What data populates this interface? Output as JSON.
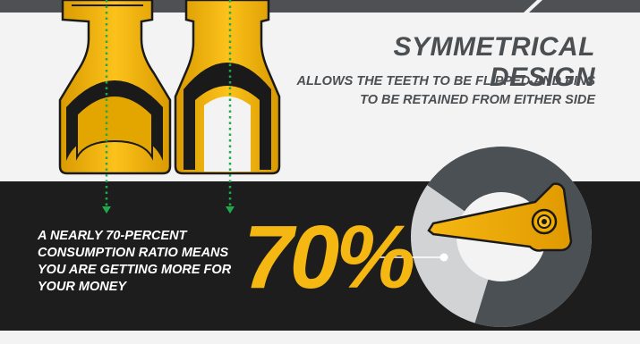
{
  "design": {
    "title": "SYMMETRICAL DESIGN",
    "description": "ALLOWS THE TEETH TO BE FLIPPED AND PINS TO BE RETAINED FROM EITHER SIDE"
  },
  "consumption": {
    "text": "A NEARLY 70-PERCENT CONSUMPTION RATIO MEANS YOU ARE GETTING MORE FOR YOUR MONEY",
    "percent_label": "70%",
    "ratio_percent": 70
  },
  "colors": {
    "accent": "#f5b712",
    "dark_band": "#1d1d1d",
    "heading": "#4b4f52",
    "ring_dark": "#4a5054",
    "ring_light": "#d1d3d4",
    "guide_line": "#1faa4a"
  }
}
